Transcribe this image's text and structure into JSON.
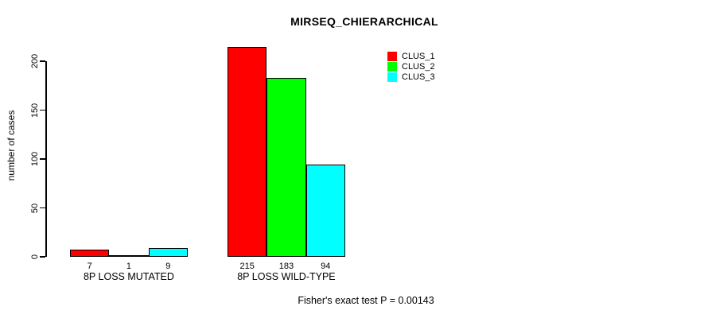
{
  "title": "MIRSEQ_CHIERARCHICAL",
  "footer": "Fisher's exact test P = 0.00143",
  "chart_data": {
    "type": "bar",
    "title": "MIRSEQ_CHIERARCHICAL",
    "xlabel": "",
    "ylabel": "number of cases",
    "ylim": [
      0,
      220
    ],
    "yticks": [
      0,
      50,
      100,
      150,
      200
    ],
    "grid": false,
    "categories": [
      "8P LOSS MUTATED",
      "8P LOSS WILD-TYPE"
    ],
    "series": [
      {
        "name": "CLUS_1",
        "color": "#FF0000",
        "values": [
          7,
          215
        ]
      },
      {
        "name": "CLUS_2",
        "color": "#00FF00",
        "values": [
          1,
          183
        ]
      },
      {
        "name": "CLUS_3",
        "color": "#00FFFF",
        "values": [
          9,
          94
        ]
      }
    ],
    "bar_value_labels": [
      [
        7,
        1,
        9
      ],
      [
        215,
        183,
        94
      ]
    ],
    "legend": {
      "position": "top-right",
      "entries": [
        {
          "label": "CLUS_1",
          "color": "#FF0000"
        },
        {
          "label": "CLUS_2",
          "color": "#00FF00"
        },
        {
          "label": "CLUS_3",
          "color": "#00FFFF"
        }
      ]
    },
    "annotation": "Fisher's exact test P = 0.00143"
  }
}
